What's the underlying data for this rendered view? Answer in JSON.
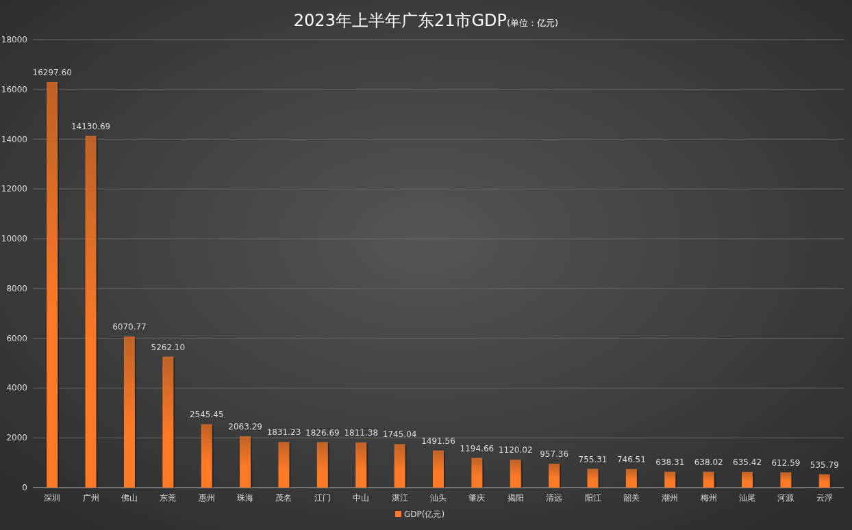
{
  "chart_data": {
    "type": "bar",
    "title": "2023年上半年广东21市GDP",
    "subtitle": "(单位：亿元)",
    "categories": [
      "深圳",
      "广州",
      "佛山",
      "东莞",
      "惠州",
      "珠海",
      "茂名",
      "江门",
      "中山",
      "湛江",
      "汕头",
      "肇庆",
      "揭阳",
      "清远",
      "阳江",
      "韶关",
      "潮州",
      "梅州",
      "汕尾",
      "河源",
      "云浮"
    ],
    "series": [
      {
        "name": "GDP(亿元)",
        "color": "#ff7a26",
        "values": [
          16297.6,
          14130.69,
          6070.77,
          5262.1,
          2545.45,
          2063.29,
          1831.23,
          1826.69,
          1811.38,
          1745.04,
          1491.56,
          1194.66,
          1120.02,
          957.36,
          755.31,
          746.51,
          638.31,
          638.02,
          635.42,
          612.59,
          535.79
        ],
        "value_labels": [
          "16297.60",
          "14130.69",
          "6070.77",
          "5262.10",
          "2545.45",
          "2063.29",
          "1831.23",
          "1826.69",
          "1811.38",
          "1745.04",
          "1491.56",
          "1194.66",
          "1120.02",
          "957.36",
          "755.31",
          "746.51",
          "638.31",
          "638.02",
          "635.42",
          "612.59",
          "535.79"
        ]
      }
    ],
    "ylim": [
      0,
      18000
    ],
    "yticks": [
      0,
      2000,
      4000,
      6000,
      8000,
      10000,
      12000,
      14000,
      16000,
      18000
    ],
    "grid": "y",
    "legend": "bottom"
  }
}
